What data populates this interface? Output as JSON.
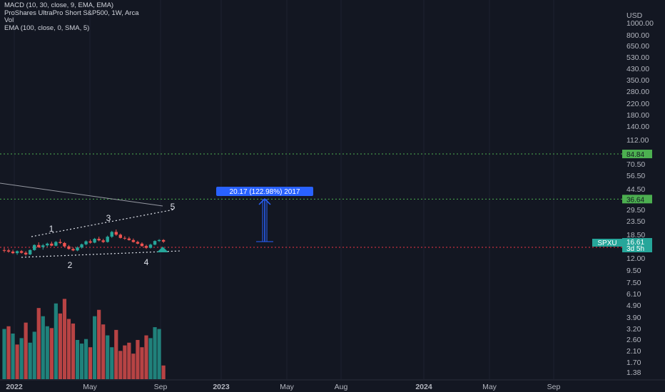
{
  "legend": {
    "macd": "MACD (10, 30, close, 9, EMA, EMA)",
    "title": "ProShares UltraPro Short S&P500, 1W, Arca",
    "vol": "Vol",
    "ema": "EMA (100, close, 0, SMA, 5)"
  },
  "colors": {
    "background": "#131722",
    "up": "#26a69a",
    "down": "#ef5350",
    "green_level": "#4caf50",
    "red_level": "#f23645",
    "measure": "#2962ff",
    "ema_line": "#9598a1"
  },
  "chart_data": {
    "type": "candlestick",
    "symbol": "SPXU",
    "interval": "1W",
    "currency": "USD",
    "y_axis_scale": "log",
    "y_ticks": [
      "1000.00",
      "800.00",
      "650.00",
      "530.00",
      "430.00",
      "350.00",
      "280.00",
      "220.00",
      "180.00",
      "140.00",
      "112.00",
      "84.84",
      "70.50",
      "56.50",
      "44.50",
      "36.64",
      "29.50",
      "23.50",
      "18.50",
      "16.61",
      "14.94",
      "12.00",
      "9.50",
      "7.50",
      "6.10",
      "4.90",
      "3.90",
      "3.20",
      "2.60",
      "2.10",
      "1.70",
      "1.38"
    ],
    "x_ticks": [
      "2022",
      "May",
      "Sep",
      "2023",
      "May",
      "Aug",
      "2024",
      "May",
      "Sep"
    ],
    "horizontal_levels": [
      {
        "value": 84.84,
        "label": "84.84",
        "color": "green"
      },
      {
        "value": 36.64,
        "label": "36.64",
        "color": "green"
      },
      {
        "value": 14.94,
        "label": "14.94",
        "color": "red"
      }
    ],
    "last_price": {
      "symbol": "SPXU",
      "value": "16.61",
      "countdown": "3d 5h"
    },
    "measure_label": "20.17 (122.98%) 2017",
    "wave_labels": [
      "1",
      "2",
      "3",
      "4",
      "5"
    ],
    "candles": [
      {
        "o": 14.2,
        "h": 14.8,
        "l": 13.6,
        "c": 14.1
      },
      {
        "o": 14.1,
        "h": 14.6,
        "l": 13.5,
        "c": 13.8
      },
      {
        "o": 13.8,
        "h": 14.3,
        "l": 13.2,
        "c": 13.4
      },
      {
        "o": 13.4,
        "h": 14.1,
        "l": 13.0,
        "c": 13.9
      },
      {
        "o": 13.9,
        "h": 14.2,
        "l": 13.3,
        "c": 13.5
      },
      {
        "o": 13.5,
        "h": 13.9,
        "l": 12.8,
        "c": 13.1
      },
      {
        "o": 13.1,
        "h": 14.4,
        "l": 12.9,
        "c": 14.2
      },
      {
        "o": 14.2,
        "h": 15.8,
        "l": 14.0,
        "c": 15.6
      },
      {
        "o": 15.6,
        "h": 16.4,
        "l": 14.8,
        "c": 15.0
      },
      {
        "o": 15.0,
        "h": 15.9,
        "l": 14.3,
        "c": 15.5
      },
      {
        "o": 15.5,
        "h": 16.3,
        "l": 15.1,
        "c": 16.0
      },
      {
        "o": 16.0,
        "h": 16.6,
        "l": 15.2,
        "c": 15.4
      },
      {
        "o": 15.4,
        "h": 16.8,
        "l": 15.2,
        "c": 16.5
      },
      {
        "o": 16.5,
        "h": 17.4,
        "l": 15.9,
        "c": 16.2
      },
      {
        "o": 16.2,
        "h": 16.5,
        "l": 15.0,
        "c": 15.2
      },
      {
        "o": 15.2,
        "h": 15.6,
        "l": 14.3,
        "c": 14.5
      },
      {
        "o": 14.5,
        "h": 14.9,
        "l": 13.9,
        "c": 14.1
      },
      {
        "o": 14.1,
        "h": 15.2,
        "l": 13.9,
        "c": 14.9
      },
      {
        "o": 14.9,
        "h": 16.0,
        "l": 14.6,
        "c": 15.8
      },
      {
        "o": 15.8,
        "h": 17.0,
        "l": 15.5,
        "c": 16.7
      },
      {
        "o": 16.7,
        "h": 17.3,
        "l": 16.0,
        "c": 16.3
      },
      {
        "o": 16.3,
        "h": 17.8,
        "l": 16.1,
        "c": 17.5
      },
      {
        "o": 17.5,
        "h": 18.2,
        "l": 16.7,
        "c": 17.0
      },
      {
        "o": 17.0,
        "h": 17.5,
        "l": 16.2,
        "c": 16.5
      },
      {
        "o": 16.5,
        "h": 18.6,
        "l": 16.3,
        "c": 18.2
      },
      {
        "o": 18.2,
        "h": 20.3,
        "l": 17.8,
        "c": 19.9
      },
      {
        "o": 19.9,
        "h": 20.8,
        "l": 18.5,
        "c": 18.9
      },
      {
        "o": 18.9,
        "h": 19.3,
        "l": 17.6,
        "c": 17.8
      },
      {
        "o": 17.8,
        "h": 18.4,
        "l": 17.2,
        "c": 17.6
      },
      {
        "o": 17.6,
        "h": 18.2,
        "l": 16.9,
        "c": 17.1
      },
      {
        "o": 17.1,
        "h": 17.6,
        "l": 16.3,
        "c": 16.5
      },
      {
        "o": 16.5,
        "h": 16.9,
        "l": 15.8,
        "c": 16.0
      },
      {
        "o": 16.0,
        "h": 16.4,
        "l": 15.1,
        "c": 15.3
      },
      {
        "o": 15.3,
        "h": 15.7,
        "l": 14.5,
        "c": 14.8
      },
      {
        "o": 14.8,
        "h": 16.0,
        "l": 14.6,
        "c": 15.7
      },
      {
        "o": 15.7,
        "h": 17.0,
        "l": 15.5,
        "c": 16.8
      },
      {
        "o": 16.8,
        "h": 17.4,
        "l": 16.5,
        "c": 17.1
      },
      {
        "o": 17.1,
        "h": 17.4,
        "l": 16.2,
        "c": 16.61
      }
    ],
    "volume": [
      0.55,
      0.58,
      0.5,
      0.38,
      0.45,
      0.62,
      0.4,
      0.52,
      0.78,
      0.69,
      0.58,
      0.56,
      0.83,
      0.72,
      0.88,
      0.66,
      0.61,
      0.43,
      0.39,
      0.44,
      0.35,
      0.69,
      0.76,
      0.6,
      0.48,
      0.35,
      0.54,
      0.31,
      0.37,
      0.4,
      0.28,
      0.43,
      0.35,
      0.48,
      0.45,
      0.57,
      0.55,
      0.15
    ],
    "volume_direction": [
      "up",
      "down",
      "up",
      "down",
      "up",
      "down",
      "up",
      "up",
      "down",
      "up",
      "up",
      "down",
      "up",
      "down",
      "down",
      "down",
      "down",
      "up",
      "up",
      "up",
      "down",
      "up",
      "down",
      "down",
      "up",
      "up",
      "down",
      "down",
      "down",
      "down",
      "down",
      "down",
      "down",
      "down",
      "up",
      "up",
      "up",
      "down"
    ]
  }
}
